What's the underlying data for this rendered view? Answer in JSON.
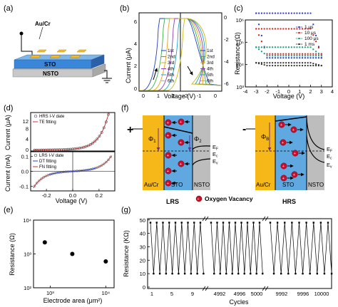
{
  "panel_letters": [
    "(a)",
    "(b)",
    "(c)",
    "(d)",
    "(e)",
    "(f)",
    "(g)"
  ],
  "panel_a": {
    "labels": {
      "top_electrode": "Au/Cr",
      "layer1": "STO",
      "layer2": "NSTO"
    }
  },
  "panel_b": {
    "ylabel": "Current (μA)",
    "xlabel": "Voltage (V)",
    "left": {
      "xticks": [
        "0",
        "1",
        "2"
      ],
      "yticks": [
        "0",
        "2",
        "4",
        "6"
      ]
    },
    "right": {
      "xticks": [
        "-2",
        "-1",
        "0"
      ],
      "yticks": [
        "0",
        "-2",
        "-4",
        "-6"
      ]
    },
    "legend_left": [
      "1st",
      "2nd",
      "3rd",
      "4th",
      "5th",
      "6th"
    ],
    "legend_right": [
      "1st",
      "2nd",
      "3rd",
      "4th",
      "5th",
      "6th"
    ]
  },
  "panel_c": {
    "ylabel": "Resistance (Ω)",
    "xlabel": "Voltage (V)",
    "xticks": [
      "-4",
      "-3",
      "-2",
      "-1",
      "0",
      "1",
      "2",
      "3",
      "4"
    ],
    "yticks": [
      "10³",
      "10⁴",
      "10⁵",
      "10⁶"
    ],
    "legend": [
      "1 μs",
      "10 μs",
      "100 μs",
      "1 ms"
    ]
  },
  "panel_d": {
    "top_ylabel": "Current (μA)",
    "bottom_ylabel": "Current (mA)",
    "xlabel": "Voltage (V)",
    "top_yticks": [
      "12",
      "8",
      "4",
      "0"
    ],
    "bottom_yticks": [
      "0.1",
      "0.0",
      "-0.1"
    ],
    "xticks": [
      "-0.2",
      "0.0",
      "0.2"
    ],
    "top_legend": [
      "HRS I-V date",
      "TE fitting"
    ],
    "bottom_legend": [
      "LRS I-V date",
      "DT fitting",
      "FN fitting"
    ]
  },
  "panel_e": {
    "ylabel": "Resistance (Ω)",
    "xlabel": "Electrode area (μm²)",
    "xticks": [
      "10³",
      "10⁴"
    ],
    "yticks": [
      "10²",
      "10³",
      "10⁴"
    ]
  },
  "panel_f": {
    "labels": {
      "lrs": "LRS",
      "hrs": "HRS",
      "oxygen_vacancy": "Oxygen Vacancy",
      "au_cr": "Au/Cr",
      "sto": "STO",
      "nsto": "NSTO",
      "ef": "E",
      "ec": "E",
      "ev": "E",
      "sub_f": "F",
      "sub_c": "c",
      "sub_v": "v",
      "phi1": "Φ",
      "phi2": "Φ",
      "phiB": "Φ",
      "sub1": "1",
      "sub2": "2",
      "subB": "B",
      "plus": "+",
      "minus": "-"
    }
  },
  "panel_g": {
    "ylabel": "Resistance (KΩ)",
    "xlabel": "Cycles",
    "yticks": [
      "50",
      "40",
      "30",
      "20",
      "10",
      "0"
    ],
    "xticks": [
      "1",
      "5",
      "9",
      "4992",
      "4996",
      "5000",
      "9992",
      "9996",
      "10000"
    ]
  },
  "chart_data": [
    {
      "type": "line",
      "panel": "b",
      "series": [
        {
          "name": "1st"
        },
        {
          "name": "2nd"
        },
        {
          "name": "3rd"
        },
        {
          "name": "4th"
        },
        {
          "name": "5th"
        },
        {
          "name": "6th"
        }
      ]
    },
    {
      "type": "scatter",
      "panel": "c",
      "x": [
        -3,
        -2,
        -1,
        0,
        1,
        2,
        3
      ],
      "series": [
        {
          "name": "1 μs",
          "high": 2000000,
          "low": 20000
        },
        {
          "name": "10 μs",
          "high": 400000,
          "low": 30000
        },
        {
          "name": "100 μs",
          "high": 60000,
          "low": 25000
        },
        {
          "name": "1 ms",
          "high": 12000,
          "low": 9000
        }
      ]
    },
    {
      "type": "scatter",
      "panel": "e",
      "x": [
        800,
        2500,
        10000
      ],
      "values": [
        2200,
        1000,
        600
      ]
    },
    {
      "type": "line",
      "panel": "g",
      "ylim": [
        0,
        50
      ],
      "hrs_value": 48,
      "lrs_value": 10
    }
  ]
}
